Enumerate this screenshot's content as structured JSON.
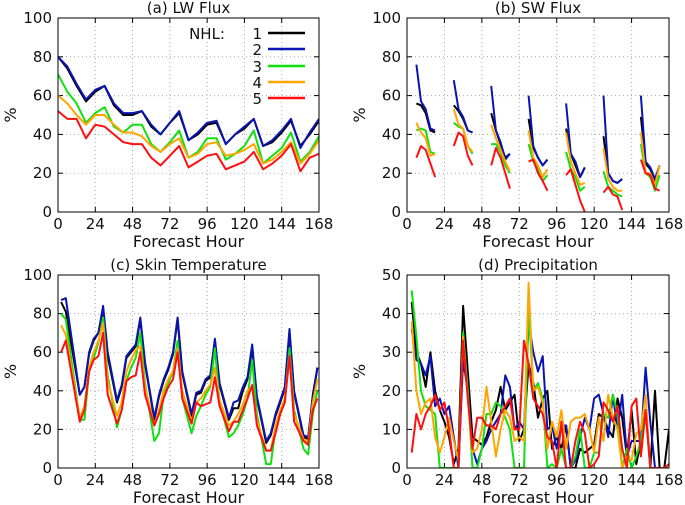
{
  "figure": {
    "legend_title": "NHL:",
    "series_names": [
      "1",
      "2",
      "3",
      "4",
      "5"
    ],
    "series_colors": [
      "#000000",
      "#0a14b4",
      "#10e010",
      "#ffa500",
      "#ff1010"
    ]
  },
  "chart_data": [
    {
      "type": "line",
      "title": "(a) LW Flux",
      "xlabel": "Forecast Hour",
      "ylabel": "%",
      "xlim": [
        0,
        168
      ],
      "ylim": [
        0,
        100
      ],
      "xticks": [
        "0",
        "24",
        "48",
        "72",
        "96",
        "120",
        "144",
        "168"
      ],
      "yticks": [
        "0",
        "20",
        "40",
        "60",
        "80",
        "100"
      ],
      "grid": true,
      "legend": "top-right",
      "x": [
        0,
        6,
        12,
        18,
        24,
        30,
        36,
        42,
        48,
        54,
        60,
        66,
        72,
        78,
        84,
        90,
        96,
        102,
        108,
        114,
        120,
        126,
        132,
        138,
        144,
        150,
        156,
        162,
        168
      ],
      "series": [
        {
          "name": "1",
          "values": [
            80,
            74,
            65,
            57,
            62,
            65,
            55,
            50,
            50,
            52,
            44,
            40,
            46,
            51,
            37,
            40,
            45,
            46,
            35,
            40,
            43,
            48,
            34,
            36,
            41,
            47,
            34,
            40,
            47
          ]
        },
        {
          "name": "2",
          "values": [
            80,
            75,
            66,
            58,
            63,
            65,
            56,
            51,
            51,
            52,
            45,
            40,
            46,
            52,
            37,
            41,
            46,
            47,
            35,
            40,
            44,
            48,
            34,
            37,
            42,
            48,
            33,
            41,
            48
          ]
        },
        {
          "name": "3",
          "values": [
            71,
            62,
            56,
            46,
            51,
            54,
            44,
            41,
            45,
            45,
            35,
            31,
            36,
            42,
            28,
            31,
            38,
            38,
            27,
            30,
            34,
            42,
            25,
            29,
            33,
            41,
            26,
            31,
            39
          ]
        },
        {
          "name": "4",
          "values": [
            60,
            56,
            50,
            45,
            50,
            50,
            45,
            41,
            41,
            39,
            34,
            31,
            35,
            38,
            28,
            30,
            35,
            36,
            29,
            30,
            32,
            35,
            25,
            27,
            31,
            36,
            25,
            30,
            37
          ]
        },
        {
          "name": "5",
          "values": [
            52,
            48,
            48,
            38,
            45,
            44,
            40,
            36,
            35,
            35,
            28,
            24,
            29,
            34,
            23,
            26,
            29,
            30,
            22,
            24,
            26,
            31,
            22,
            25,
            29,
            35,
            21,
            28,
            30
          ]
        }
      ]
    },
    {
      "type": "line",
      "title": "(b) SW Flux",
      "xlabel": "Forecast Hour",
      "ylabel": "%",
      "xlim": [
        0,
        168
      ],
      "ylim": [
        0,
        100
      ],
      "xticks": [
        "0",
        "24",
        "48",
        "72",
        "96",
        "120",
        "144",
        "168"
      ],
      "yticks": [
        "0",
        "20",
        "40",
        "60",
        "80",
        "100"
      ],
      "grid": true,
      "x": [
        6,
        9,
        12,
        15,
        18,
        null,
        30,
        33,
        36,
        39,
        42,
        null,
        54,
        57,
        60,
        63,
        66,
        null,
        78,
        81,
        84,
        87,
        90,
        null,
        102,
        105,
        108,
        111,
        114,
        null,
        126,
        129,
        132,
        135,
        138,
        null,
        150,
        153,
        156,
        159,
        162
      ],
      "series": [
        {
          "name": "1",
          "values": [
            56,
            55,
            51,
            42,
            41,
            null,
            55,
            52,
            48,
            42,
            41,
            null,
            51,
            42,
            35,
            28,
            30,
            null,
            48,
            33,
            28,
            24,
            27,
            null,
            43,
            30,
            24,
            18,
            23,
            null,
            39,
            20,
            16,
            15,
            17,
            null,
            49,
            25,
            22,
            16,
            24
          ]
        },
        {
          "name": "2",
          "values": [
            76,
            57,
            53,
            43,
            42,
            null,
            68,
            53,
            49,
            42,
            41,
            null,
            65,
            42,
            36,
            27,
            30,
            null,
            60,
            34,
            28,
            24,
            27,
            null,
            56,
            30,
            26,
            18,
            23,
            null,
            60,
            20,
            16,
            15,
            17,
            null,
            60,
            26,
            23,
            17,
            24
          ]
        },
        {
          "name": "3",
          "values": [
            42,
            43,
            42,
            31,
            30,
            null,
            46,
            44,
            43,
            34,
            30,
            null,
            35,
            35,
            31,
            24,
            20,
            null,
            35,
            26,
            22,
            16,
            19,
            null,
            31,
            22,
            18,
            11,
            13,
            null,
            21,
            13,
            11,
            9,
            8,
            null,
            35,
            20,
            18,
            11,
            19
          ]
        },
        {
          "name": "4",
          "values": [
            46,
            41,
            38,
            29,
            30,
            null,
            53,
            45,
            43,
            34,
            31,
            null,
            45,
            38,
            32,
            26,
            21,
            null,
            42,
            28,
            24,
            18,
            22,
            null,
            41,
            26,
            20,
            14,
            15,
            null,
            33,
            17,
            13,
            11,
            11,
            null,
            41,
            20,
            20,
            14,
            24
          ]
        },
        {
          "name": "5",
          "values": [
            28,
            34,
            32,
            25,
            18,
            null,
            34,
            41,
            39,
            29,
            24,
            null,
            24,
            33,
            28,
            20,
            12,
            null,
            26,
            27,
            20,
            16,
            11,
            null,
            19,
            22,
            14,
            6,
            0,
            null,
            10,
            13,
            9,
            8,
            1,
            null,
            27,
            20,
            19,
            12,
            11
          ]
        }
      ]
    },
    {
      "type": "line",
      "title": "(c) Skin Temperature",
      "xlabel": "Forecast Hour",
      "ylabel": "%",
      "xlim": [
        0,
        168
      ],
      "ylim": [
        0,
        100
      ],
      "xticks": [
        "0",
        "24",
        "48",
        "72",
        "96",
        "120",
        "144",
        "168"
      ],
      "yticks": [
        "0",
        "20",
        "40",
        "60",
        "80",
        "100"
      ],
      "grid": true,
      "x": [
        2,
        5,
        14,
        17,
        20,
        23,
        26,
        29,
        32,
        38,
        41,
        44,
        47,
        50,
        53,
        56,
        62,
        65,
        68,
        71,
        74,
        77,
        80,
        86,
        89,
        92,
        95,
        98,
        101,
        104,
        110,
        113,
        116,
        119,
        122,
        125,
        128,
        134,
        137,
        140,
        143,
        146,
        149,
        152,
        158,
        161,
        164,
        167
      ],
      "series": [
        {
          "name": "1",
          "values": [
            86,
            81,
            38,
            42,
            59,
            66,
            70,
            82,
            58,
            34,
            42,
            57,
            60,
            63,
            77,
            54,
            25,
            37,
            45,
            51,
            59,
            77,
            49,
            27,
            38,
            39,
            45,
            47,
            66,
            43,
            25,
            31,
            31,
            40,
            46,
            62,
            36,
            13,
            17,
            27,
            34,
            41,
            70,
            39,
            16,
            15,
            38,
            52
          ]
        },
        {
          "name": "2",
          "values": [
            87,
            88,
            38,
            42,
            60,
            67,
            70,
            84,
            60,
            35,
            43,
            58,
            61,
            64,
            78,
            55,
            26,
            38,
            46,
            52,
            60,
            78,
            50,
            28,
            39,
            40,
            46,
            48,
            67,
            44,
            26,
            34,
            35,
            42,
            47,
            64,
            37,
            14,
            18,
            28,
            35,
            42,
            72,
            40,
            17,
            16,
            36,
            52
          ]
        },
        {
          "name": "3",
          "values": [
            80,
            77,
            25,
            25,
            50,
            57,
            65,
            78,
            48,
            21,
            30,
            45,
            52,
            57,
            70,
            44,
            14,
            18,
            38,
            44,
            50,
            66,
            36,
            18,
            27,
            32,
            38,
            42,
            62,
            34,
            16,
            18,
            22,
            28,
            36,
            56,
            28,
            2,
            2,
            20,
            28,
            34,
            62,
            30,
            10,
            7,
            28,
            40
          ]
        },
        {
          "name": "4",
          "values": [
            74,
            69,
            26,
            32,
            52,
            60,
            66,
            75,
            45,
            27,
            34,
            50,
            56,
            61,
            63,
            42,
            22,
            30,
            40,
            46,
            50,
            62,
            40,
            24,
            34,
            36,
            40,
            43,
            52,
            35,
            22,
            24,
            28,
            33,
            40,
            42,
            25,
            9,
            9,
            22,
            30,
            36,
            58,
            28,
            15,
            13,
            34,
            46
          ]
        },
        {
          "name": "5",
          "values": [
            60,
            66,
            24,
            30,
            50,
            56,
            58,
            70,
            38,
            23,
            30,
            45,
            47,
            48,
            60,
            38,
            22,
            28,
            36,
            42,
            46,
            60,
            36,
            23,
            34,
            32,
            33,
            34,
            47,
            32,
            19,
            24,
            24,
            30,
            36,
            43,
            22,
            9,
            9,
            18,
            28,
            34,
            58,
            24,
            14,
            12,
            30,
            36
          ]
        }
      ]
    },
    {
      "type": "line",
      "title": "(d) Precipitation",
      "xlabel": "Forecast Hour",
      "ylabel": "%",
      "xlim": [
        0,
        168
      ],
      "ylim": [
        0,
        50
      ],
      "xticks": [
        "0",
        "24",
        "48",
        "72",
        "96",
        "120",
        "144",
        "168"
      ],
      "yticks": [
        "0",
        "10",
        "20",
        "30",
        "40",
        "50"
      ],
      "grid": true,
      "x_start": 3,
      "x_step": 3,
      "series": [
        {
          "name": "1",
          "values": [
            43,
            30,
            27,
            21,
            30,
            20,
            15,
            12,
            8,
            1,
            5,
            42,
            25,
            8,
            7,
            6,
            8,
            12,
            15,
            21,
            15,
            17,
            19,
            7,
            10,
            27,
            22,
            13,
            18,
            20,
            5,
            8,
            5,
            11,
            0,
            0,
            5,
            4,
            5,
            6,
            14,
            13,
            10,
            8,
            18,
            13,
            3,
            15,
            1,
            7,
            15,
            0,
            20,
            0,
            0,
            10
          ]
        },
        {
          "name": "2",
          "values": [
            36,
            28,
            27,
            24,
            29,
            16,
            18,
            14,
            16,
            8,
            0,
            28,
            20,
            5,
            1,
            5,
            7,
            10,
            12,
            14,
            24,
            21,
            10,
            12,
            10,
            38,
            30,
            25,
            29,
            10,
            11,
            5,
            11,
            11,
            0,
            2,
            8,
            13,
            10,
            18,
            19,
            14,
            8,
            19,
            10,
            19,
            3,
            7,
            7,
            7,
            26,
            12,
            0,
            0,
            0,
            1
          ]
        },
        {
          "name": "3",
          "values": [
            46,
            34,
            20,
            16,
            15,
            14,
            0,
            0,
            0,
            0,
            0,
            35,
            20,
            0,
            0,
            5,
            14,
            14,
            17,
            16,
            13,
            10,
            0,
            0,
            0,
            42,
            20,
            22,
            18,
            0,
            1,
            0,
            5,
            0,
            0,
            3,
            10,
            0,
            0,
            4,
            4,
            14,
            13,
            19,
            14,
            0,
            5,
            0,
            3,
            7,
            15,
            0,
            0,
            0,
            0,
            0
          ]
        },
        {
          "name": "4",
          "values": [
            38,
            20,
            14,
            17,
            18,
            8,
            4,
            8,
            13,
            7,
            2,
            34,
            18,
            4,
            5,
            10,
            21,
            12,
            3,
            10,
            15,
            13,
            7,
            8,
            7,
            48,
            20,
            21,
            17,
            5,
            12,
            8,
            15,
            5,
            12,
            13,
            13,
            14,
            10,
            4,
            13,
            7,
            19,
            13,
            10,
            0,
            3,
            2,
            9,
            10,
            19,
            0,
            0,
            0,
            0,
            1
          ]
        },
        {
          "name": "5",
          "values": [
            4,
            14,
            10,
            14,
            16,
            19,
            15,
            17,
            10,
            0,
            0,
            33,
            18,
            5,
            13,
            13,
            11,
            11,
            10,
            14,
            16,
            18,
            10,
            10,
            33,
            27,
            18,
            16,
            14,
            8,
            7,
            0,
            12,
            0,
            0,
            7,
            12,
            9,
            0,
            1,
            3,
            17,
            15,
            12,
            16,
            5,
            0,
            16,
            18,
            3,
            15,
            0,
            0,
            0,
            0,
            1
          ]
        }
      ]
    }
  ]
}
